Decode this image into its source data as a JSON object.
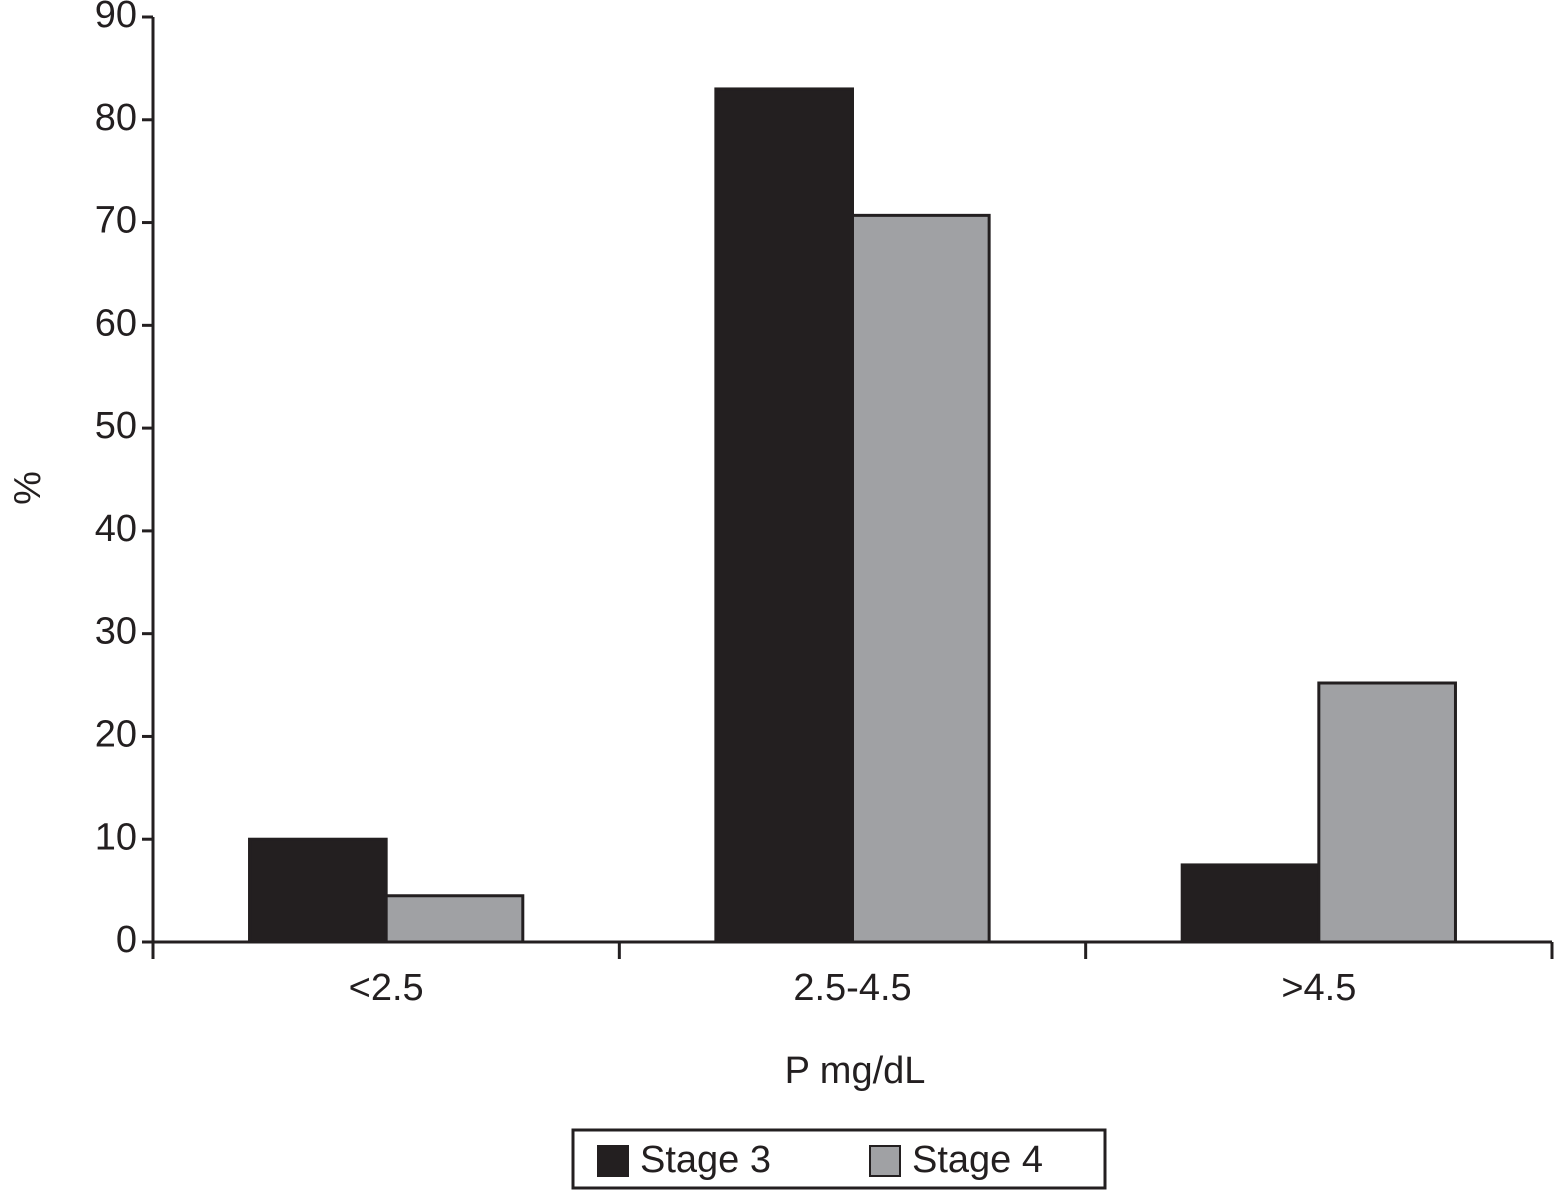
{
  "chart_data": {
    "type": "bar",
    "x_label": "P mg/dL",
    "y_label": "%",
    "categories": [
      "<2.5",
      "2.5-4.5",
      ">4.5"
    ],
    "series": [
      {
        "name": "Stage 3",
        "color": "#231f20",
        "values": [
          10,
          83,
          7.5
        ]
      },
      {
        "name": "Stage 4",
        "color": "#a0a1a4",
        "values": [
          4.5,
          70.7,
          25.2
        ]
      }
    ],
    "ylim": [
      0,
      90
    ],
    "yticks": [
      0,
      10,
      20,
      30,
      40,
      50,
      60,
      70,
      80,
      90
    ],
    "grid": false,
    "legend": "bottom"
  }
}
